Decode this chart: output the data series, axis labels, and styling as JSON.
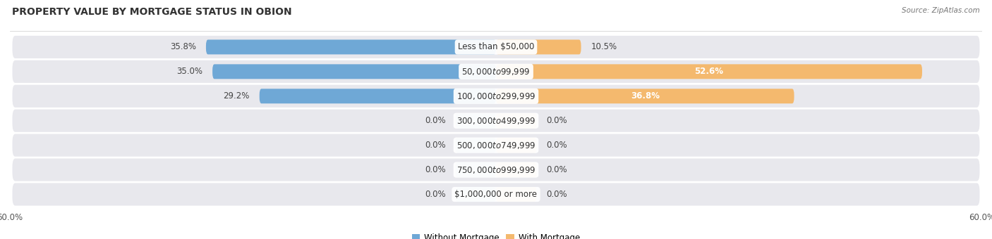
{
  "title": "PROPERTY VALUE BY MORTGAGE STATUS IN OBION",
  "source": "Source: ZipAtlas.com",
  "categories": [
    "Less than $50,000",
    "$50,000 to $99,999",
    "$100,000 to $299,999",
    "$300,000 to $499,999",
    "$500,000 to $749,999",
    "$750,000 to $999,999",
    "$1,000,000 or more"
  ],
  "without_mortgage": [
    35.8,
    35.0,
    29.2,
    0.0,
    0.0,
    0.0,
    0.0
  ],
  "with_mortgage": [
    10.5,
    52.6,
    36.8,
    0.0,
    0.0,
    0.0,
    0.0
  ],
  "xlim_left": -60.0,
  "xlim_right": 60.0,
  "axis_max": 60.0,
  "color_without": "#6fa8d6",
  "color_with": "#f4b96e",
  "color_without_light": "#aecde8",
  "color_with_light": "#f9d5a8",
  "row_bg": "#e8e8ed",
  "label_fontsize": 8.5,
  "title_fontsize": 10,
  "legend_fontsize": 8.5,
  "value_fontsize": 8.5,
  "stub": 5.0
}
